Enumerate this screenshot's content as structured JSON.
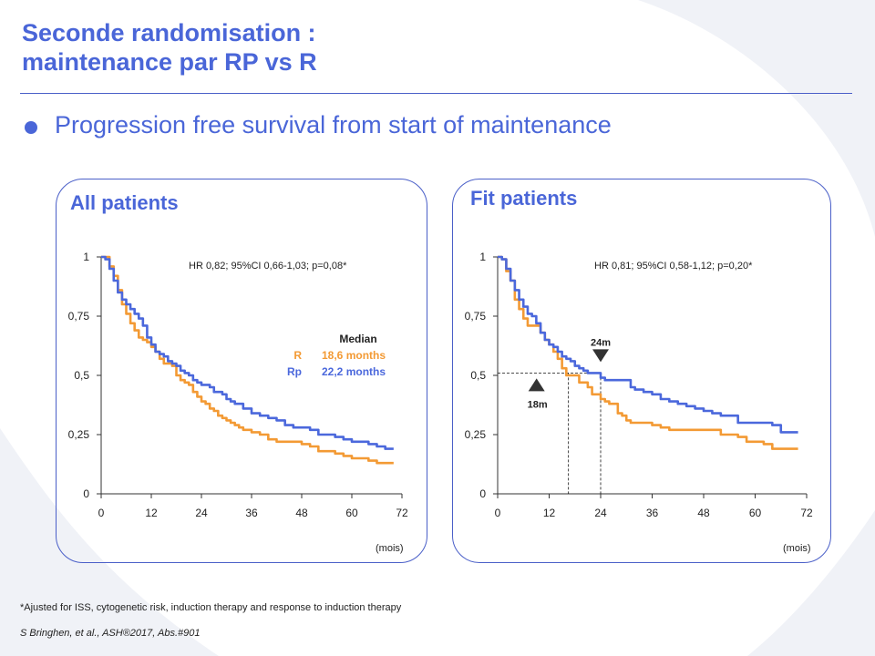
{
  "slide": {
    "title_line1": "Seconde randomisation :",
    "title_line2": "maintenance par RP vs R",
    "bullet": "Progression free survival from start of maintenance",
    "footnote": "*Ajusted for ISS, cytogenetic risk, induction therapy and response to induction therapy",
    "citation": "S Bringhen, et al., ASH®2017, Abs.#901"
  },
  "colors": {
    "accent": "#4a66d8",
    "R": "#f39a34",
    "Rp": "#4b68dc"
  },
  "chart_data": [
    {
      "type": "line",
      "panel_title": "All patients",
      "xlabel": "(mois)",
      "ylabel": "",
      "xlim": [
        0,
        72
      ],
      "ylim": [
        0,
        1
      ],
      "xticks": [
        0,
        12,
        24,
        36,
        48,
        60,
        72
      ],
      "yticks": [
        0,
        0.25,
        0.5,
        0.75,
        1
      ],
      "xtick_labels": [
        "0",
        "12",
        "24",
        "36",
        "48",
        "60",
        "72"
      ],
      "ytick_labels": [
        "0",
        "0,25",
        "0,5",
        "0,75",
        "1"
      ],
      "annotation": "HR 0,82; 95%CI 0,66-1,03; p=0,08*",
      "legend": {
        "header": "Median",
        "entries": [
          {
            "series": "R",
            "label": "R",
            "value": "18,6 months"
          },
          {
            "series": "Rp",
            "label": "Rp",
            "value": "22,2 months"
          }
        ]
      },
      "series": [
        {
          "name": "R",
          "color": "#f39a34",
          "x": [
            0,
            1,
            2,
            3,
            4,
            5,
            6,
            7,
            8,
            9,
            10,
            11,
            12,
            13,
            14,
            15,
            16,
            17,
            18,
            19,
            20,
            21,
            22,
            23,
            24,
            25,
            26,
            27,
            28,
            29,
            30,
            31,
            32,
            33,
            34,
            36,
            38,
            40,
            42,
            44,
            46,
            48,
            50,
            52,
            54,
            56,
            58,
            60,
            62,
            64,
            66,
            68,
            70
          ],
          "y": [
            1.0,
            1.0,
            0.96,
            0.92,
            0.86,
            0.8,
            0.76,
            0.72,
            0.69,
            0.66,
            0.65,
            0.64,
            0.62,
            0.6,
            0.57,
            0.55,
            0.55,
            0.54,
            0.5,
            0.48,
            0.47,
            0.46,
            0.43,
            0.41,
            0.39,
            0.38,
            0.36,
            0.35,
            0.33,
            0.32,
            0.31,
            0.3,
            0.29,
            0.28,
            0.27,
            0.26,
            0.25,
            0.23,
            0.22,
            0.22,
            0.22,
            0.21,
            0.2,
            0.18,
            0.18,
            0.17,
            0.16,
            0.15,
            0.15,
            0.14,
            0.13,
            0.13,
            0.13
          ]
        },
        {
          "name": "Rp",
          "color": "#4b68dc",
          "x": [
            0,
            1,
            2,
            3,
            4,
            5,
            6,
            7,
            8,
            9,
            10,
            11,
            12,
            13,
            14,
            15,
            16,
            17,
            18,
            19,
            20,
            21,
            22,
            23,
            24,
            26,
            27,
            28,
            29,
            30,
            31,
            32,
            34,
            36,
            38,
            40,
            42,
            44,
            46,
            48,
            50,
            52,
            54,
            56,
            58,
            60,
            62,
            64,
            66,
            68,
            70
          ],
          "y": [
            1.0,
            0.99,
            0.95,
            0.9,
            0.85,
            0.82,
            0.8,
            0.78,
            0.76,
            0.74,
            0.71,
            0.66,
            0.63,
            0.6,
            0.59,
            0.58,
            0.56,
            0.55,
            0.54,
            0.52,
            0.51,
            0.5,
            0.48,
            0.47,
            0.46,
            0.45,
            0.43,
            0.43,
            0.42,
            0.4,
            0.39,
            0.38,
            0.36,
            0.34,
            0.33,
            0.32,
            0.31,
            0.29,
            0.28,
            0.28,
            0.27,
            0.25,
            0.25,
            0.24,
            0.23,
            0.22,
            0.22,
            0.21,
            0.2,
            0.19,
            0.19
          ]
        }
      ]
    },
    {
      "type": "line",
      "panel_title": "Fit patients",
      "xlabel": "(mois)",
      "ylabel": "",
      "xlim": [
        0,
        72
      ],
      "ylim": [
        0,
        1
      ],
      "xticks": [
        0,
        12,
        24,
        36,
        48,
        60,
        72
      ],
      "yticks": [
        0,
        0.25,
        0.5,
        0.75,
        1
      ],
      "xtick_labels": [
        "0",
        "12",
        "24",
        "36",
        "48",
        "60",
        "72"
      ],
      "ytick_labels": [
        "0",
        "0,25",
        "0,5",
        "0,75",
        "1"
      ],
      "annotation": "HR 0,81; 95%CI 0,58-1,12; p=0,20*",
      "medians": [
        {
          "series": "R",
          "label": "18m",
          "x": 16.5,
          "y": 0.51
        },
        {
          "series": "Rp",
          "label": "24m",
          "x": 24,
          "y": 0.51
        }
      ],
      "series": [
        {
          "name": "R",
          "color": "#f39a34",
          "x": [
            0,
            1,
            2,
            3,
            4,
            5,
            6,
            7,
            8,
            9,
            10,
            11,
            12,
            13,
            14,
            15,
            16,
            17,
            18,
            19,
            20,
            21,
            22,
            23,
            24,
            25,
            26,
            27,
            28,
            29,
            30,
            31,
            32,
            34,
            36,
            38,
            40,
            42,
            44,
            46,
            48,
            50,
            52,
            54,
            56,
            58,
            60,
            62,
            64,
            66,
            68,
            70
          ],
          "y": [
            1.0,
            0.99,
            0.94,
            0.9,
            0.82,
            0.78,
            0.74,
            0.71,
            0.71,
            0.71,
            0.68,
            0.65,
            0.63,
            0.6,
            0.57,
            0.53,
            0.5,
            0.5,
            0.5,
            0.47,
            0.47,
            0.45,
            0.42,
            0.42,
            0.4,
            0.39,
            0.38,
            0.38,
            0.34,
            0.33,
            0.31,
            0.3,
            0.3,
            0.3,
            0.29,
            0.28,
            0.27,
            0.27,
            0.27,
            0.27,
            0.27,
            0.27,
            0.25,
            0.25,
            0.24,
            0.22,
            0.22,
            0.21,
            0.19,
            0.19,
            0.19,
            0.19
          ]
        },
        {
          "name": "Rp",
          "color": "#4b68dc",
          "x": [
            0,
            1,
            2,
            3,
            4,
            5,
            6,
            7,
            8,
            9,
            10,
            11,
            12,
            13,
            14,
            15,
            16,
            17,
            18,
            19,
            20,
            21,
            22,
            23,
            24,
            25,
            26,
            27,
            28,
            29,
            30,
            31,
            32,
            34,
            36,
            38,
            40,
            42,
            44,
            46,
            48,
            50,
            52,
            54,
            56,
            58,
            60,
            62,
            64,
            66,
            68,
            70
          ],
          "y": [
            1.0,
            0.99,
            0.95,
            0.9,
            0.86,
            0.82,
            0.79,
            0.76,
            0.75,
            0.72,
            0.68,
            0.65,
            0.63,
            0.62,
            0.6,
            0.58,
            0.57,
            0.56,
            0.54,
            0.53,
            0.52,
            0.51,
            0.51,
            0.51,
            0.49,
            0.48,
            0.48,
            0.48,
            0.48,
            0.48,
            0.48,
            0.45,
            0.44,
            0.43,
            0.42,
            0.4,
            0.39,
            0.38,
            0.37,
            0.36,
            0.35,
            0.34,
            0.33,
            0.33,
            0.3,
            0.3,
            0.3,
            0.3,
            0.29,
            0.26,
            0.26,
            0.26
          ]
        }
      ]
    }
  ]
}
